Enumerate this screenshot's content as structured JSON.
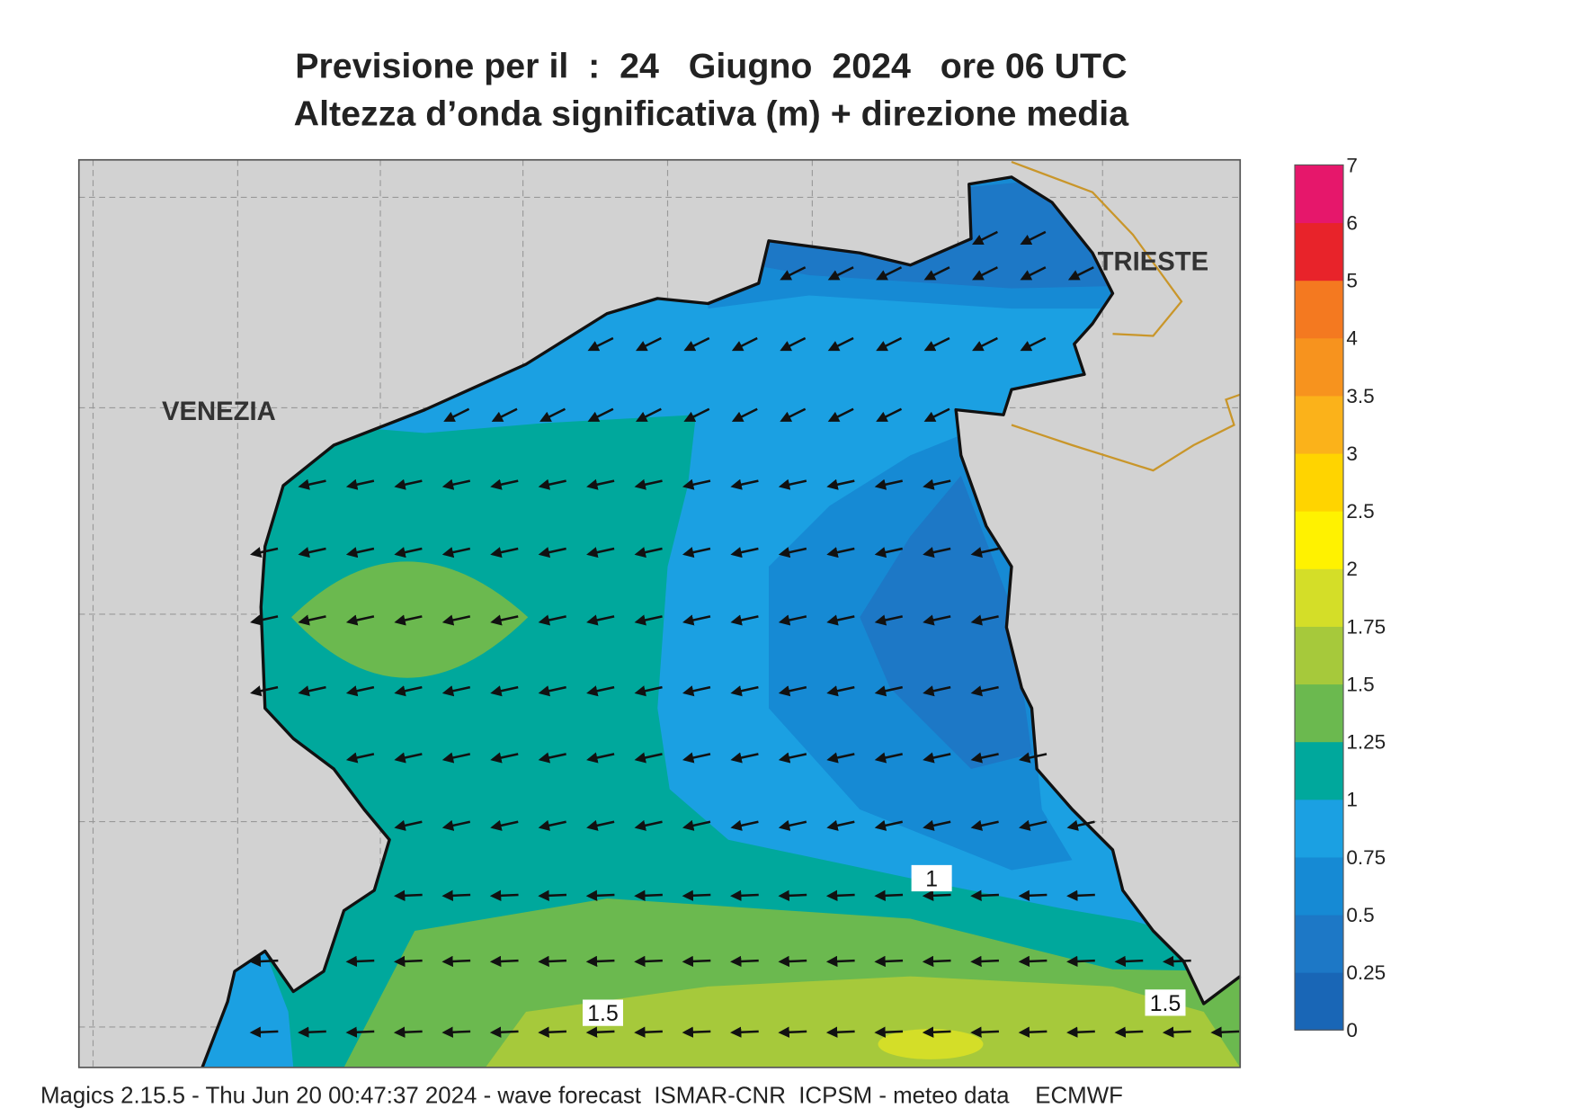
{
  "title": [
    "Previsione per il  :  24   Giugno  2024   ore 06 UTC",
    "Altezza d’onda significativa (m) + direzione media"
  ],
  "places": [
    "VENEZIA",
    "TRIESTE"
  ],
  "contour_labels": [
    1,
    1.5,
    1.5
  ],
  "legend": {
    "ticks": [
      0,
      0.25,
      0.5,
      0.75,
      1,
      1.25,
      1.5,
      1.75,
      2,
      2.5,
      3,
      3.5,
      4,
      5,
      6,
      7
    ],
    "colors": [
      "#1966b6",
      "#1d78c6",
      "#168ad4",
      "#1ba0e2",
      "#00a89c",
      "#6bb94f",
      "#a6c93b",
      "#d4de28",
      "#fff200",
      "#ffd400",
      "#fbb21a",
      "#f7931e",
      "#f47920",
      "#e8232a",
      "#e6176b"
    ]
  },
  "footer": "Magics 2.15.5 - Thu Jun 20 00:47:37 2024 - wave forecast  ISMAR-CNR  ICPSM - meteo data    ECMWF"
}
